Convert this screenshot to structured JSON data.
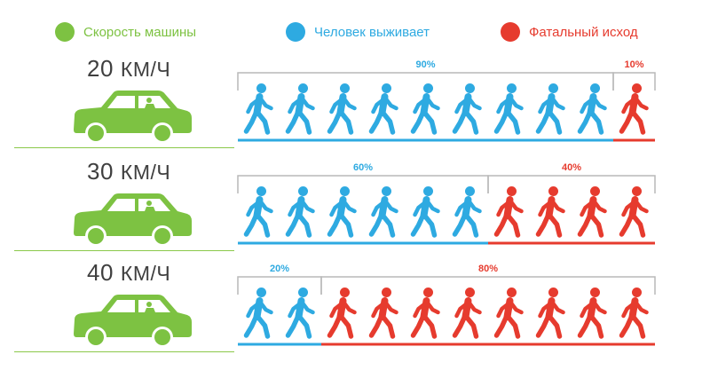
{
  "colors": {
    "green": "#7dc242",
    "blue": "#2eaae1",
    "red": "#e63b2e",
    "gray": "#b9b9b9"
  },
  "legend": [
    {
      "label": "Скорость машины",
      "color": "#7dc242"
    },
    {
      "label": "Человек выживает",
      "color": "#2eaae1"
    },
    {
      "label": "Фатальный исход",
      "color": "#e63b2e"
    }
  ],
  "rows": [
    {
      "speed": "20",
      "unit": "КМ/Ч",
      "survive_pct": "90%",
      "fatal_pct": "10%",
      "survive_count": 9,
      "fatal_count": 1
    },
    {
      "speed": "30",
      "unit": "КМ/Ч",
      "survive_pct": "60%",
      "fatal_pct": "40%",
      "survive_count": 6,
      "fatal_count": 4
    },
    {
      "speed": "40",
      "unit": "КМ/Ч",
      "survive_pct": "20%",
      "fatal_pct": "80%",
      "survive_count": 2,
      "fatal_count": 8
    }
  ],
  "icons": {
    "car": "car-icon",
    "walker": "walking-person-icon"
  }
}
